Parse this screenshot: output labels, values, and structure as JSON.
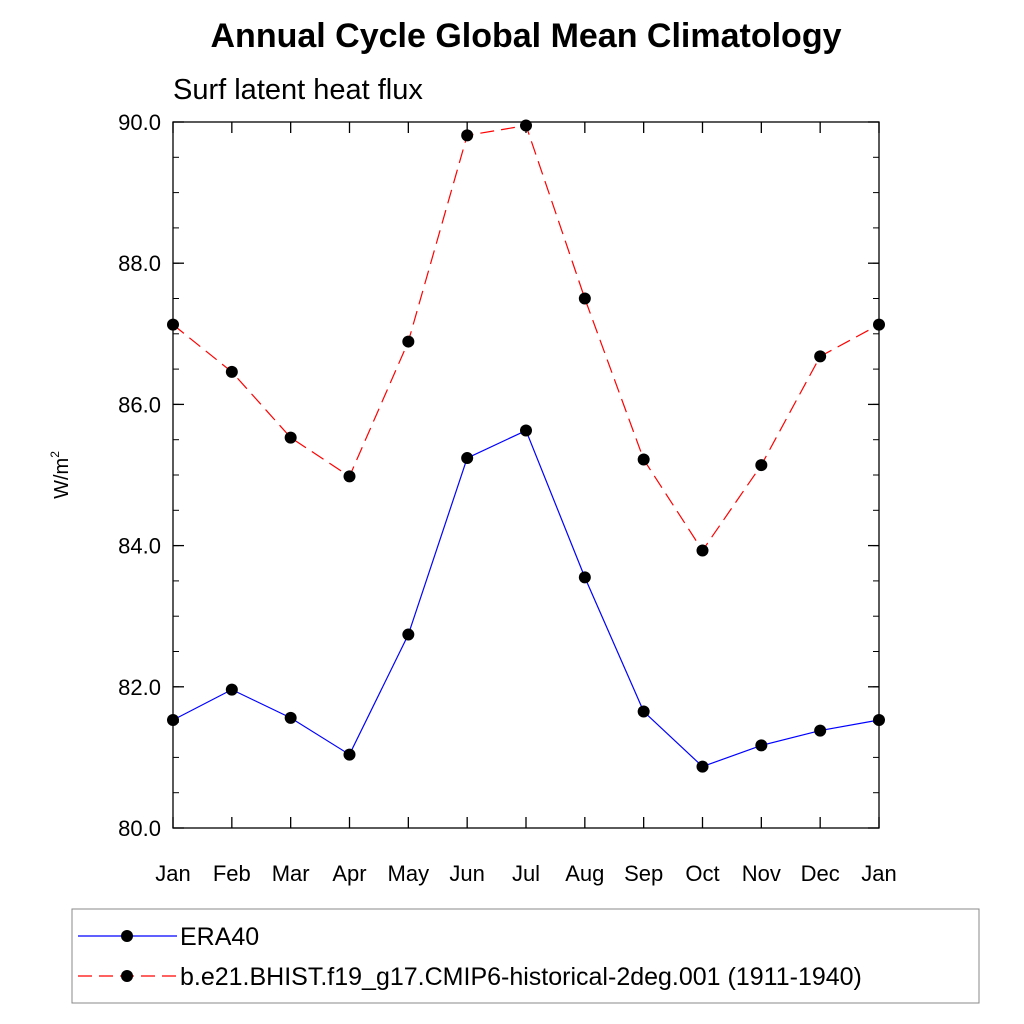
{
  "chart_data": {
    "type": "line",
    "title": "Annual Cycle Global Mean Climatology",
    "subtitle": "Surf latent heat flux",
    "ylabel_base": "W/m",
    "ylabel_sup": "2",
    "xlabel": "",
    "categories": [
      "Jan",
      "Feb",
      "Mar",
      "Apr",
      "May",
      "Jun",
      "Jul",
      "Aug",
      "Sep",
      "Oct",
      "Nov",
      "Dec",
      "Jan"
    ],
    "ylim": [
      80.0,
      90.0
    ],
    "yticks": [
      80.0,
      82.0,
      84.0,
      86.0,
      88.0,
      90.0
    ],
    "ytick_labels": [
      "80.0",
      "82.0",
      "84.0",
      "86.0",
      "88.0",
      "90.0"
    ],
    "yminor_step": 0.5,
    "grid": false,
    "legend_position": "bottom",
    "series": [
      {
        "name": "ERA40",
        "color": "#0000ff",
        "dash": "solid",
        "values": [
          81.53,
          81.96,
          81.56,
          81.04,
          82.74,
          85.24,
          85.63,
          83.55,
          81.65,
          80.87,
          81.17,
          81.38,
          81.53
        ]
      },
      {
        "name": "b.e21.BHIST.f19_g17.CMIP6-historical-2deg.001 (1911-1940)",
        "color": "#ff0000",
        "dash": "dashed",
        "values": [
          87.13,
          86.46,
          85.53,
          84.98,
          86.89,
          89.81,
          89.95,
          87.5,
          85.22,
          83.93,
          85.14,
          86.68,
          87.13
        ]
      }
    ]
  }
}
